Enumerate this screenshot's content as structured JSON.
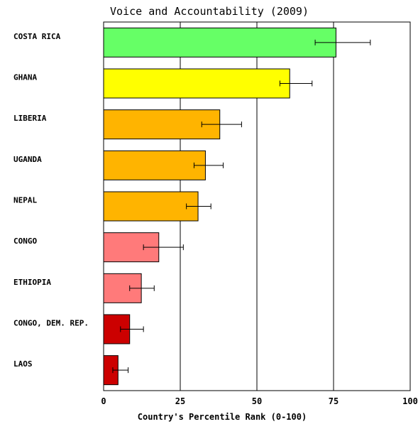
{
  "chart_data": {
    "type": "bar",
    "orientation": "horizontal",
    "title": "Voice and Accountability (2009)",
    "xlabel": "Country's Percentile Rank (0-100)",
    "ylabel": "",
    "xlim": [
      0,
      100
    ],
    "xticks": [
      "0",
      "25",
      "50",
      "75",
      "100"
    ],
    "grid": true,
    "categories": [
      "COSTA RICA",
      "GHANA",
      "LIBERIA",
      "UGANDA",
      "NEPAL",
      "CONGO",
      "ETHIOPIA",
      "CONGO, DEM. REP.",
      "LAOS"
    ],
    "values": [
      75.8,
      60.7,
      37.9,
      33.2,
      30.8,
      18.0,
      12.3,
      8.5,
      4.7
    ],
    "error_low": [
      69.0,
      57.5,
      32.0,
      29.5,
      27.0,
      13.0,
      8.5,
      5.5,
      3.0
    ],
    "error_high": [
      87.0,
      68.0,
      45.0,
      39.0,
      35.0,
      26.0,
      16.5,
      13.0,
      8.0
    ],
    "colors": [
      "#66ff66",
      "#ffff00",
      "#ffb400",
      "#ffb400",
      "#ffb400",
      "#ff7a7a",
      "#ff7a7a",
      "#cc0000",
      "#cc0000"
    ]
  }
}
